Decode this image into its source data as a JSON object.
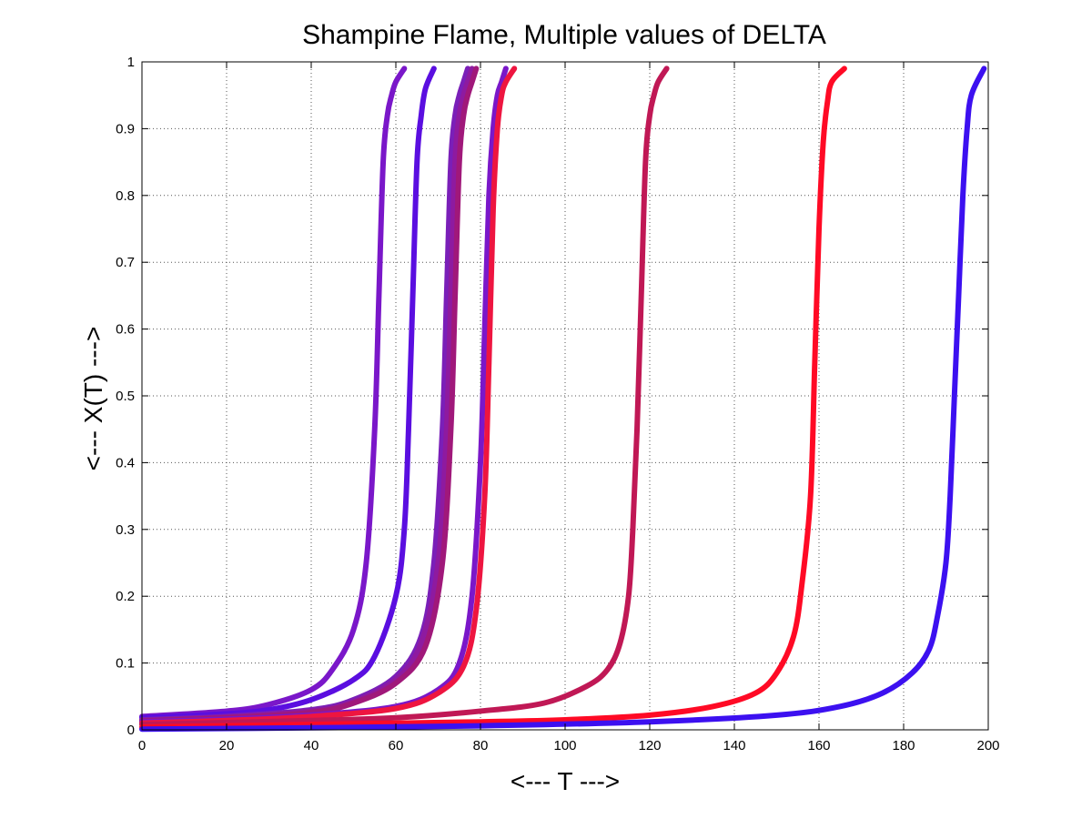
{
  "chart_data": {
    "type": "line",
    "title": "Shampine Flame, Multiple values of DELTA",
    "xlabel": "<--- T --->",
    "ylabel": "<--- X(T) --->",
    "xlim": [
      0,
      200
    ],
    "ylim": [
      0,
      1
    ],
    "xticks": [
      0,
      20,
      40,
      60,
      80,
      100,
      120,
      140,
      160,
      180,
      200
    ],
    "yticks": [
      0,
      0.1,
      0.2,
      0.3,
      0.4,
      0.5,
      0.6,
      0.7,
      0.8,
      0.9,
      1
    ],
    "xtick_labels": [
      "0",
      "20",
      "40",
      "60",
      "80",
      "100",
      "120",
      "140",
      "160",
      "180",
      "200"
    ],
    "ytick_labels": [
      "0",
      "0.1",
      "0.2",
      "0.3",
      "0.4",
      "0.5",
      "0.6",
      "0.7",
      "0.8",
      "0.9",
      "1"
    ],
    "grid": true,
    "series": [
      {
        "color": "#7a17c9",
        "x": [
          0,
          20,
          30,
          40,
          45,
          50,
          53,
          55,
          56,
          57,
          58,
          59,
          60,
          62
        ],
        "y": [
          0.02,
          0.028,
          0.038,
          0.06,
          0.09,
          0.15,
          0.25,
          0.45,
          0.65,
          0.85,
          0.92,
          0.95,
          0.97,
          0.99
        ]
      },
      {
        "color": "#5a0ee0",
        "x": [
          0,
          20,
          30,
          40,
          50,
          55,
          60,
          62,
          63,
          64,
          65,
          66,
          67,
          69
        ],
        "y": [
          0.018,
          0.024,
          0.03,
          0.045,
          0.075,
          0.11,
          0.2,
          0.3,
          0.45,
          0.65,
          0.85,
          0.92,
          0.96,
          0.99
        ]
      },
      {
        "color": "#7a1fb8",
        "x": [
          0,
          20,
          40,
          50,
          60,
          66,
          69,
          71,
          72,
          73,
          74,
          75,
          76,
          77
        ],
        "y": [
          0.015,
          0.02,
          0.03,
          0.045,
          0.08,
          0.14,
          0.25,
          0.45,
          0.65,
          0.85,
          0.92,
          0.95,
          0.97,
          0.99
        ]
      },
      {
        "color": "#8e1aa0",
        "x": [
          0,
          20,
          40,
          50,
          60,
          66,
          70,
          72,
          73,
          74,
          75,
          76,
          77,
          78
        ],
        "y": [
          0.014,
          0.019,
          0.028,
          0.042,
          0.075,
          0.13,
          0.25,
          0.45,
          0.65,
          0.85,
          0.92,
          0.95,
          0.97,
          0.99
        ]
      },
      {
        "color": "#a0187a",
        "x": [
          0,
          20,
          40,
          50,
          60,
          67,
          71,
          73,
          74,
          75,
          76,
          77,
          78,
          79
        ],
        "y": [
          0.013,
          0.018,
          0.026,
          0.04,
          0.07,
          0.125,
          0.25,
          0.45,
          0.65,
          0.85,
          0.92,
          0.95,
          0.97,
          0.99
        ]
      },
      {
        "color": "#7a17c9",
        "x": [
          0,
          20,
          40,
          60,
          70,
          75,
          78,
          80,
          81,
          82,
          83,
          84,
          85,
          86
        ],
        "y": [
          0.012,
          0.016,
          0.022,
          0.035,
          0.06,
          0.1,
          0.2,
          0.4,
          0.6,
          0.8,
          0.9,
          0.95,
          0.97,
          0.99
        ]
      },
      {
        "color": "#ee1540",
        "x": [
          0,
          20,
          40,
          60,
          70,
          76,
          79,
          81,
          82,
          83,
          84,
          85,
          86,
          88
        ],
        "y": [
          0.01,
          0.014,
          0.02,
          0.032,
          0.055,
          0.095,
          0.18,
          0.35,
          0.55,
          0.78,
          0.9,
          0.95,
          0.97,
          0.99
        ]
      },
      {
        "color": "#c01855",
        "x": [
          0,
          40,
          60,
          80,
          95,
          105,
          110,
          113,
          115,
          116,
          117,
          118,
          119,
          120,
          121,
          122,
          124
        ],
        "y": [
          0.008,
          0.014,
          0.018,
          0.028,
          0.04,
          0.065,
          0.09,
          0.13,
          0.2,
          0.3,
          0.45,
          0.65,
          0.85,
          0.92,
          0.95,
          0.97,
          0.99
        ]
      },
      {
        "color": "#ff0a25",
        "x": [
          0,
          40,
          80,
          100,
          120,
          135,
          145,
          150,
          154,
          156,
          158,
          159,
          160,
          161,
          162,
          163,
          166
        ],
        "y": [
          0.004,
          0.008,
          0.012,
          0.015,
          0.022,
          0.035,
          0.055,
          0.085,
          0.14,
          0.22,
          0.35,
          0.55,
          0.75,
          0.88,
          0.94,
          0.97,
          0.99
        ]
      },
      {
        "color": "#3c10f0",
        "x": [
          0,
          40,
          80,
          120,
          150,
          165,
          175,
          182,
          186,
          188,
          190,
          191,
          192,
          193,
          194,
          195,
          196,
          199
        ],
        "y": [
          0.001,
          0.003,
          0.006,
          0.012,
          0.022,
          0.035,
          0.055,
          0.085,
          0.12,
          0.17,
          0.25,
          0.35,
          0.5,
          0.65,
          0.8,
          0.9,
          0.95,
          0.99
        ]
      }
    ]
  }
}
